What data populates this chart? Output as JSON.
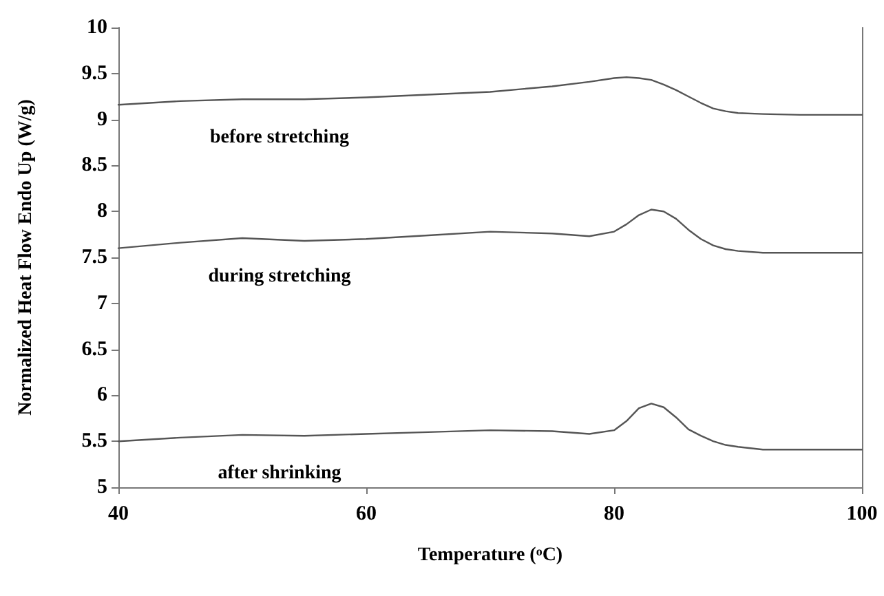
{
  "chart_data": {
    "type": "line",
    "xlabel": "Temperature ($^{o}$C)",
    "ylabel": "Normalized Heat Flow Endo Up (W/g)",
    "xlim": [
      40,
      100
    ],
    "xticks": [
      40,
      60,
      80,
      100
    ],
    "ylim": [
      5,
      10
    ],
    "yticks": [
      5,
      5.5,
      6,
      6.5,
      7,
      7.5,
      8,
      8.5,
      9,
      9.5,
      10
    ],
    "grid": false,
    "legend": false,
    "marker": "none",
    "line_style": "solid",
    "x": [
      40,
      45,
      50,
      55,
      60,
      65,
      70,
      75,
      78,
      80,
      81,
      82,
      83,
      84,
      85,
      86,
      87,
      88,
      89,
      90,
      92,
      95,
      100
    ],
    "series": [
      {
        "name": "before stretching",
        "color": "#555555",
        "values": [
          9.16,
          9.2,
          9.22,
          9.22,
          9.24,
          9.27,
          9.3,
          9.36,
          9.41,
          9.45,
          9.46,
          9.45,
          9.43,
          9.38,
          9.32,
          9.25,
          9.18,
          9.12,
          9.09,
          9.07,
          9.06,
          9.05,
          9.05
        ]
      },
      {
        "name": "during stretching",
        "color": "#555555",
        "values": [
          7.6,
          7.66,
          7.71,
          7.68,
          7.7,
          7.74,
          7.78,
          7.76,
          7.73,
          7.78,
          7.86,
          7.96,
          8.02,
          8.0,
          7.92,
          7.8,
          7.7,
          7.63,
          7.59,
          7.57,
          7.55,
          7.55,
          7.55
        ]
      },
      {
        "name": "after shrinking",
        "color": "#555555",
        "values": [
          5.5,
          5.54,
          5.57,
          5.56,
          5.58,
          5.6,
          5.62,
          5.61,
          5.58,
          5.62,
          5.72,
          5.86,
          5.91,
          5.87,
          5.76,
          5.63,
          5.56,
          5.5,
          5.46,
          5.44,
          5.41,
          5.41,
          5.41
        ]
      }
    ]
  }
}
